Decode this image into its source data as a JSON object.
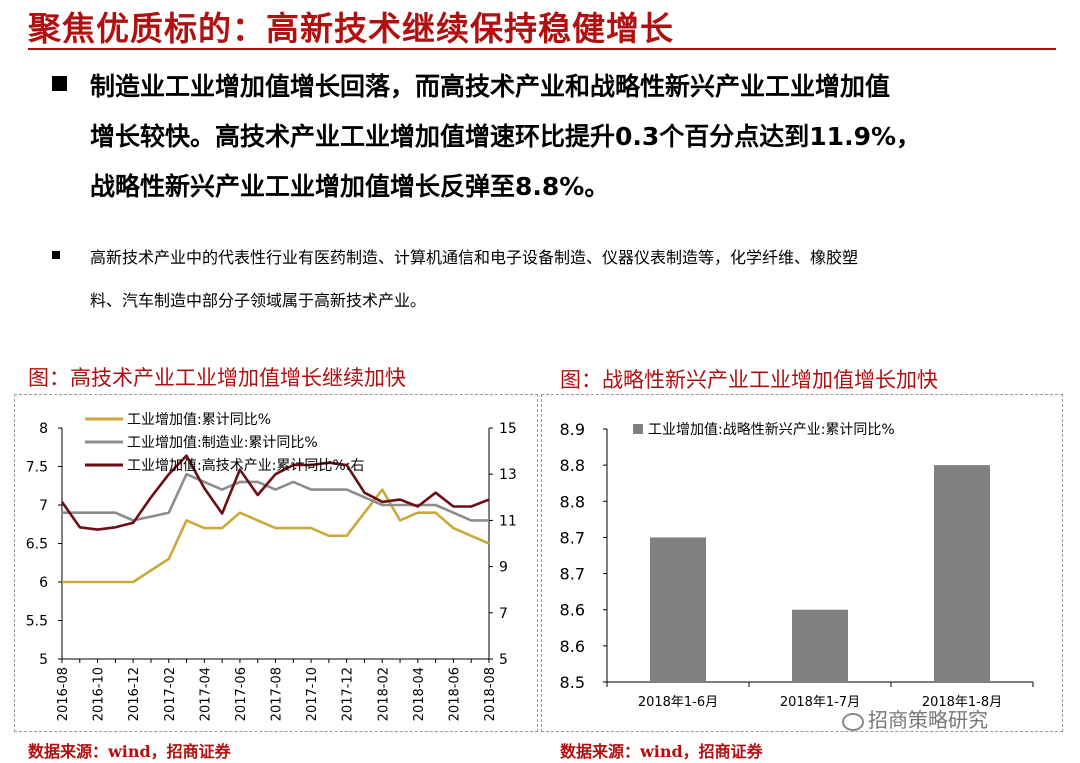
{
  "header": {
    "title": "聚焦优质标的：高新技术继续保持稳健增长"
  },
  "main_bullet": {
    "lines": [
      "制造业工业增加值增长回落，而高技术产业和战略性新兴产业工业增加值",
      "增长较快。高技术产业工业增加值增速环比提升0.3个百分点达到11.9%，",
      "战略性新兴产业工业增加值增长反弹至8.8%。"
    ]
  },
  "sub_bullet": {
    "lines": [
      "高新技术产业中的代表性行业有医药制造、计算机通信和电子设备制造、仪器仪表制造等，化学纤维、橡胶塑",
      "料、汽车制造中部分子领域属于高新技术产业。"
    ]
  },
  "left_chart": {
    "caption": "图：高技术产业工业增加值增长继续加快",
    "source": "数据来源：wind，招商证券"
  },
  "right_chart": {
    "caption": "图：战略性新兴产业工业增加值增长加快",
    "source": "数据来源：wind，招商证券"
  },
  "watermark": {
    "text": "招商策略研究"
  },
  "colors": {
    "accent_red": "#b01010",
    "gold": "#c9a93a",
    "gray": "#8c8c8c",
    "dark_red": "#6b0f14",
    "bar_gray": "#808080"
  },
  "chart_data": [
    {
      "type": "line",
      "x": [
        "2016-08",
        "2016-09",
        "2016-10",
        "2016-11",
        "2016-12",
        "2017-01",
        "2017-02",
        "2017-03",
        "2017-04",
        "2017-05",
        "2017-06",
        "2017-07",
        "2017-08",
        "2017-09",
        "2017-10",
        "2017-11",
        "2017-12",
        "2018-01",
        "2018-02",
        "2018-03",
        "2018-04",
        "2018-05",
        "2018-06",
        "2018-07",
        "2018-08"
      ],
      "x_tick_labels": [
        "2016-08",
        "2016-10",
        "2016-12",
        "2017-02",
        "2017-04",
        "2017-06",
        "2017-08",
        "2017-10",
        "2017-12",
        "2018-02",
        "2018-04",
        "2018-06",
        "2018-08"
      ],
      "series": [
        {
          "name": "工业增加值:累计同比%",
          "axis": "left",
          "color": "#c9a93a",
          "values": [
            6.0,
            6.0,
            6.0,
            6.0,
            6.0,
            6.15,
            6.3,
            6.8,
            6.7,
            6.7,
            6.9,
            6.8,
            6.7,
            6.7,
            6.7,
            6.6,
            6.6,
            6.9,
            7.2,
            6.8,
            6.9,
            6.9,
            6.7,
            6.6,
            6.5
          ]
        },
        {
          "name": "工业增加值:制造业:累计同比%",
          "axis": "left",
          "color": "#8c8c8c",
          "values": [
            6.9,
            6.9,
            6.9,
            6.9,
            6.8,
            6.85,
            6.9,
            7.4,
            7.3,
            7.2,
            7.3,
            7.3,
            7.2,
            7.3,
            7.2,
            7.2,
            7.2,
            7.1,
            7.0,
            7.0,
            7.0,
            7.0,
            6.9,
            6.8,
            6.8
          ]
        },
        {
          "name": "工业增加值:高技术产业:累计同比%:右",
          "axis": "right",
          "color": "#6b0f14",
          "values": [
            11.8,
            10.7,
            10.6,
            10.7,
            10.9,
            12.0,
            13.0,
            13.8,
            12.4,
            11.3,
            13.2,
            12.1,
            13.0,
            13.4,
            13.4,
            13.5,
            13.4,
            12.2,
            11.8,
            11.9,
            11.6,
            12.2,
            11.6,
            11.6,
            11.9
          ]
        }
      ],
      "y_left": {
        "min": 5,
        "max": 8,
        "ticks": [
          5,
          5.5,
          6,
          6.5,
          7,
          7.5,
          8
        ]
      },
      "y_right": {
        "min": 5,
        "max": 15,
        "ticks": [
          5,
          7,
          9,
          11,
          13,
          15
        ]
      },
      "legend_position": "top-left",
      "grid": false
    },
    {
      "type": "bar",
      "categories": [
        "2018年1-6月",
        "2018年1-7月",
        "2018年1-8月"
      ],
      "series": [
        {
          "name": "工业增加值:战略性新兴产业:累计同比%",
          "color": "#808080",
          "values": [
            8.7,
            8.6,
            8.8
          ]
        }
      ],
      "y_tick_labels": [
        "8.5",
        "8.6",
        "8.6",
        "8.7",
        "8.7",
        "8.8",
        "8.8",
        "8.9"
      ],
      "ylim": [
        8.5,
        8.85
      ],
      "legend_position": "top-left",
      "grid": false
    }
  ]
}
